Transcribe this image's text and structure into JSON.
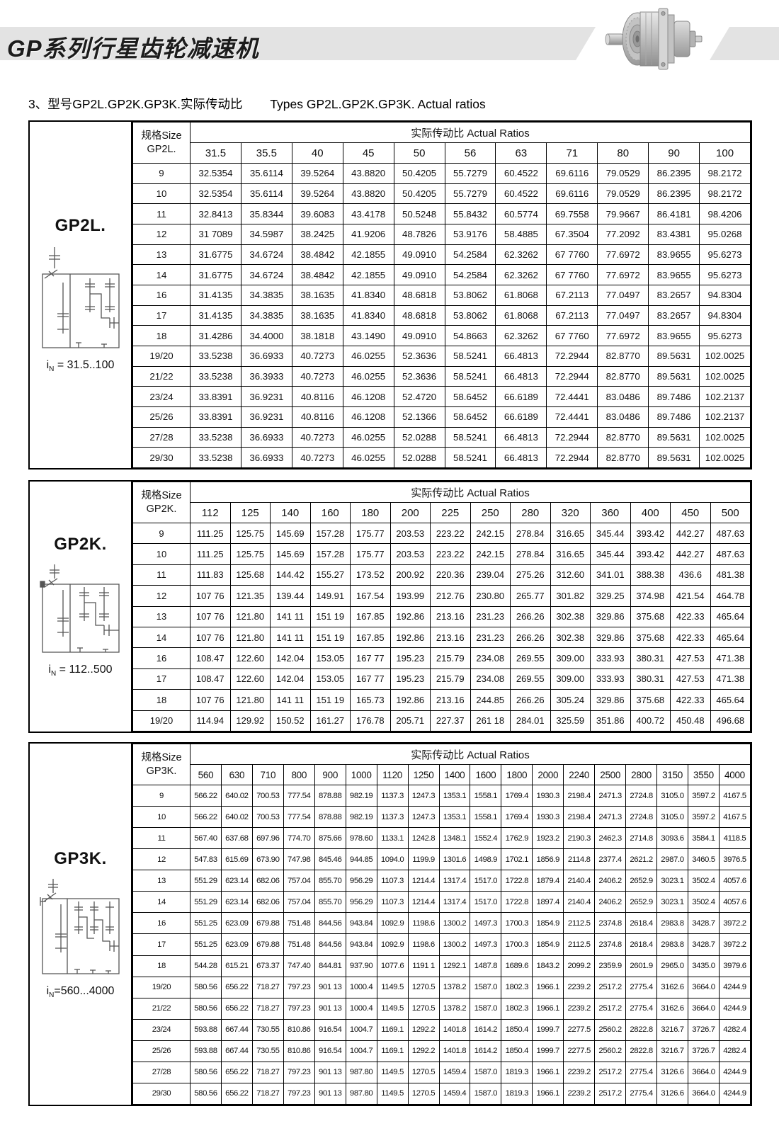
{
  "header": {
    "band_title": "GP系列行星齿轮减速机",
    "photo_alt": "planetary-gear-reducer-photo"
  },
  "section": {
    "title_zh": "3、型号GP2L.GP2K.GP3K.实际传动比",
    "title_en": "Types GP2L.GP2K.GP3K. Actual ratios"
  },
  "colors": {
    "band_gray": "#e3e3e3",
    "border_black": "#000000",
    "text": "#111111"
  },
  "tables": [
    {
      "model": "GP2L.",
      "size_header": "规格Size",
      "ratios_header": "实际传动比 Actual Ratios",
      "in_label": {
        "base": "i",
        "sub": "N",
        "range": " = 31.5..100"
      },
      "columns": [
        "31.5",
        "35.5",
        "40",
        "45",
        "50",
        "56",
        "63",
        "71",
        "80",
        "90",
        "100"
      ],
      "rows": [
        {
          "size": "9",
          "values": [
            "32.5354",
            "35.6114",
            "39.5264",
            "43.8820",
            "50.4205",
            "55.7279",
            "60.4522",
            "69.6116",
            "79.0529",
            "86.2395",
            "98.2172"
          ]
        },
        {
          "size": "10",
          "values": [
            "32.5354",
            "35.6114",
            "39.5264",
            "43.8820",
            "50.4205",
            "55.7279",
            "60.4522",
            "69.6116",
            "79.0529",
            "86.2395",
            "98.2172"
          ]
        },
        {
          "size": "11",
          "values": [
            "32.8413",
            "35.8344",
            "39.6083",
            "43.4178",
            "50.5248",
            "55.8432",
            "60.5774",
            "69.7558",
            "79.9667",
            "86.4181",
            "98.4206"
          ]
        },
        {
          "size": "12",
          "values": [
            "31 7089",
            "34.5987",
            "38.2425",
            "41.9206",
            "48.7826",
            "53.9176",
            "58.4885",
            "67.3504",
            "77.2092",
            "83.4381",
            "95.0268"
          ]
        },
        {
          "size": "13",
          "values": [
            "31.6775",
            "34.6724",
            "38.4842",
            "42.1855",
            "49.0910",
            "54.2584",
            "62.3262",
            "67 7760",
            "77.6972",
            "83.9655",
            "95.6273"
          ]
        },
        {
          "size": "14",
          "values": [
            "31.6775",
            "34.6724",
            "38.4842",
            "42.1855",
            "49.0910",
            "54.2584",
            "62.3262",
            "67 7760",
            "77.6972",
            "83.9655",
            "95.6273"
          ]
        },
        {
          "size": "16",
          "values": [
            "31.4135",
            "34.3835",
            "38.1635",
            "41.8340",
            "48.6818",
            "53.8062",
            "61.8068",
            "67.2113",
            "77.0497",
            "83.2657",
            "94.8304"
          ]
        },
        {
          "size": "17",
          "values": [
            "31.4135",
            "34.3835",
            "38.1635",
            "41.8340",
            "48.6818",
            "53.8062",
            "61.8068",
            "67.2113",
            "77.0497",
            "83.2657",
            "94.8304"
          ]
        },
        {
          "size": "18",
          "values": [
            "31.4286",
            "34.4000",
            "38.1818",
            "43.1490",
            "49.0910",
            "54.8663",
            "62.3262",
            "67 7760",
            "77.6972",
            "83.9655",
            "95.6273"
          ]
        },
        {
          "size": "19/20",
          "values": [
            "33.5238",
            "36.6933",
            "40.7273",
            "46.0255",
            "52.3636",
            "58.5241",
            "66.4813",
            "72.2944",
            "82.8770",
            "89.5631",
            "102.0025"
          ]
        },
        {
          "size": "21/22",
          "values": [
            "33.5238",
            "36.3933",
            "40.7273",
            "46.0255",
            "52.3636",
            "58.5241",
            "66.4813",
            "72.2944",
            "82.8770",
            "89.5631",
            "102.0025"
          ]
        },
        {
          "size": "23/24",
          "values": [
            "33.8391",
            "36.9231",
            "40.8116",
            "46.1208",
            "52.4720",
            "58.6452",
            "66.6189",
            "72.4441",
            "83.0486",
            "89.7486",
            "102.2137"
          ]
        },
        {
          "size": "25/26",
          "values": [
            "33.8391",
            "36.9231",
            "40.8116",
            "46.1208",
            "52.1366",
            "58.6452",
            "66.6189",
            "72.4441",
            "83.0486",
            "89.7486",
            "102.2137"
          ]
        },
        {
          "size": "27/28",
          "values": [
            "33.5238",
            "36.6933",
            "40.7273",
            "46.0255",
            "52.0288",
            "58.5241",
            "66.4813",
            "72.2944",
            "82.8770",
            "89.5631",
            "102.0025"
          ]
        },
        {
          "size": "29/30",
          "values": [
            "33.5238",
            "36.6933",
            "40.7273",
            "46.0255",
            "52.0288",
            "58.5241",
            "66.4813",
            "72.2944",
            "82.8770",
            "89.5631",
            "102.0025"
          ]
        }
      ]
    },
    {
      "model": "GP2K.",
      "size_header": "规格Size",
      "ratios_header": "实际传动比 Actual Ratios",
      "in_label": {
        "base": "i",
        "sub": "N",
        "range": " = 112..500"
      },
      "columns": [
        "112",
        "125",
        "140",
        "160",
        "180",
        "200",
        "225",
        "250",
        "280",
        "320",
        "360",
        "400",
        "450",
        "500"
      ],
      "rows": [
        {
          "size": "9",
          "values": [
            "111.25",
            "125.75",
            "145.69",
            "157.28",
            "175.77",
            "203.53",
            "223.22",
            "242.15",
            "278.84",
            "316.65",
            "345.44",
            "393.42",
            "442.27",
            "487.63"
          ]
        },
        {
          "size": "10",
          "values": [
            "111.25",
            "125.75",
            "145.69",
            "157.28",
            "175.77",
            "203.53",
            "223.22",
            "242.15",
            "278.84",
            "316.65",
            "345.44",
            "393.42",
            "442.27",
            "487.63"
          ]
        },
        {
          "size": "11",
          "values": [
            "111.83",
            "125.68",
            "144.42",
            "155.27",
            "173.52",
            "200.92",
            "220.36",
            "239.04",
            "275.26",
            "312.60",
            "341.01",
            "388.38",
            "436.6",
            "481.38"
          ]
        },
        {
          "size": "12",
          "values": [
            "107 76",
            "121.35",
            "139.44",
            "149.91",
            "167.54",
            "193.99",
            "212.76",
            "230.80",
            "265.77",
            "301.82",
            "329.25",
            "374.98",
            "421.54",
            "464.78"
          ]
        },
        {
          "size": "13",
          "values": [
            "107 76",
            "121.80",
            "141 11",
            "151 19",
            "167.85",
            "192.86",
            "213.16",
            "231.23",
            "266.26",
            "302.38",
            "329.86",
            "375.68",
            "422.33",
            "465.64"
          ]
        },
        {
          "size": "14",
          "values": [
            "107 76",
            "121.80",
            "141 11",
            "151 19",
            "167.85",
            "192.86",
            "213.16",
            "231.23",
            "266.26",
            "302.38",
            "329.86",
            "375.68",
            "422.33",
            "465.64"
          ]
        },
        {
          "size": "16",
          "values": [
            "108.47",
            "122.60",
            "142.04",
            "153.05",
            "167 77",
            "195.23",
            "215.79",
            "234.08",
            "269.55",
            "309.00",
            "333.93",
            "380.31",
            "427.53",
            "471.38"
          ]
        },
        {
          "size": "17",
          "values": [
            "108.47",
            "122.60",
            "142.04",
            "153.05",
            "167 77",
            "195.23",
            "215.79",
            "234.08",
            "269.55",
            "309.00",
            "333.93",
            "380.31",
            "427.53",
            "471.38"
          ]
        },
        {
          "size": "18",
          "values": [
            "107 76",
            "121.80",
            "141 11",
            "151 19",
            "165.73",
            "192.86",
            "213.16",
            "244.85",
            "266.26",
            "305.24",
            "329.86",
            "375.68",
            "422.33",
            "465.64"
          ]
        },
        {
          "size": "19/20",
          "values": [
            "114.94",
            "129.92",
            "150.52",
            "161.27",
            "176.78",
            "205.71",
            "227.37",
            "261 18",
            "284.01",
            "325.59",
            "351.86",
            "400.72",
            "450.48",
            "496.68"
          ]
        }
      ]
    },
    {
      "model": "GP3K.",
      "size_header": "规格Size",
      "ratios_header": "实际传动比 Actual Ratios",
      "in_label": {
        "base": "i",
        "sub": "N",
        "range": "=560...4000"
      },
      "columns": [
        "560",
        "630",
        "710",
        "800",
        "900",
        "1000",
        "1120",
        "1250",
        "1400",
        "1600",
        "1800",
        "2000",
        "2240",
        "2500",
        "2800",
        "3150",
        "3550",
        "4000"
      ],
      "rows": [
        {
          "size": "9",
          "values": [
            "566.22",
            "640.02",
            "700.53",
            "777.54",
            "878.88",
            "982.19",
            "1137.3",
            "1247.3",
            "1353.1",
            "1558.1",
            "1769.4",
            "1930.3",
            "2198.4",
            "2471.3",
            "2724.8",
            "3105.0",
            "3597.2",
            "4167.5"
          ]
        },
        {
          "size": "10",
          "values": [
            "566.22",
            "640.02",
            "700.53",
            "777.54",
            "878.88",
            "982.19",
            "1137.3",
            "1247.3",
            "1353.1",
            "1558.1",
            "1769.4",
            "1930.3",
            "2198.4",
            "2471.3",
            "2724.8",
            "3105.0",
            "3597.2",
            "4167.5"
          ]
        },
        {
          "size": "11",
          "values": [
            "567.40",
            "637.68",
            "697.96",
            "774.70",
            "875.66",
            "978.60",
            "1133.1",
            "1242.8",
            "1348.1",
            "1552.4",
            "1762.9",
            "1923.2",
            "2190.3",
            "2462.3",
            "2714.8",
            "3093.6",
            "3584.1",
            "4118.5"
          ]
        },
        {
          "size": "12",
          "values": [
            "547.83",
            "615.69",
            "673.90",
            "747.98",
            "845.46",
            "944.85",
            "1094.0",
            "1199.9",
            "1301.6",
            "1498.9",
            "1702.1",
            "1856.9",
            "2114.8",
            "2377.4",
            "2621.2",
            "2987.0",
            "3460.5",
            "3976.5"
          ]
        },
        {
          "size": "13",
          "values": [
            "551.29",
            "623.14",
            "682.06",
            "757.04",
            "855.70",
            "956.29",
            "1107.3",
            "1214.4",
            "1317.4",
            "1517.0",
            "1722.8",
            "1879.4",
            "2140.4",
            "2406.2",
            "2652.9",
            "3023.1",
            "3502.4",
            "4057.6"
          ]
        },
        {
          "size": "14",
          "values": [
            "551.29",
            "623.14",
            "682.06",
            "757.04",
            "855.70",
            "956.29",
            "1107.3",
            "1214.4",
            "1317.4",
            "1517.0",
            "1722.8",
            "1897.4",
            "2140.4",
            "2406.2",
            "2652.9",
            "3023.1",
            "3502.4",
            "4057.6"
          ]
        },
        {
          "size": "16",
          "values": [
            "551.25",
            "623.09",
            "679.88",
            "751.48",
            "844.56",
            "943.84",
            "1092.9",
            "1198.6",
            "1300.2",
            "1497.3",
            "1700.3",
            "1854.9",
            "2112.5",
            "2374.8",
            "2618.4",
            "2983.8",
            "3428.7",
            "3972.2"
          ]
        },
        {
          "size": "17",
          "values": [
            "551.25",
            "623.09",
            "679.88",
            "751.48",
            "844.56",
            "943.84",
            "1092.9",
            "1198.6",
            "1300.2",
            "1497.3",
            "1700.3",
            "1854.9",
            "2112.5",
            "2374.8",
            "2618.4",
            "2983.8",
            "3428.7",
            "3972.2"
          ]
        },
        {
          "size": "18",
          "values": [
            "544.28",
            "615.21",
            "673.37",
            "747.40",
            "844.81",
            "937.90",
            "1077.6",
            "1191 1",
            "1292.1",
            "1487.8",
            "1689.6",
            "1843.2",
            "2099.2",
            "2359.9",
            "2601.9",
            "2965.0",
            "3435.0",
            "3979.6"
          ]
        },
        {
          "size": "19/20",
          "values": [
            "580.56",
            "656.22",
            "718.27",
            "797.23",
            "901 13",
            "1000.4",
            "1149.5",
            "1270.5",
            "1378.2",
            "1587.0",
            "1802.3",
            "1966.1",
            "2239.2",
            "2517.2",
            "2775.4",
            "3162.6",
            "3664.0",
            "4244.9"
          ]
        },
        {
          "size": "21/22",
          "values": [
            "580.56",
            "656.22",
            "718.27",
            "797.23",
            "901 13",
            "1000.4",
            "1149.5",
            "1270.5",
            "1378.2",
            "1587.0",
            "1802.3",
            "1966.1",
            "2239.2",
            "2517.2",
            "2775.4",
            "3162.6",
            "3664.0",
            "4244.9"
          ]
        },
        {
          "size": "23/24",
          "values": [
            "593.88",
            "667.44",
            "730.55",
            "810.86",
            "916.54",
            "1004.7",
            "1169.1",
            "1292.2",
            "1401.8",
            "1614.2",
            "1850.4",
            "1999.7",
            "2277.5",
            "2560.2",
            "2822.8",
            "3216.7",
            "3726.7",
            "4282.4"
          ]
        },
        {
          "size": "25/26",
          "values": [
            "593.88",
            "667.44",
            "730.55",
            "810.86",
            "916.54",
            "1004.7",
            "1169.1",
            "1292.2",
            "1401.8",
            "1614.2",
            "1850.4",
            "1999.7",
            "2277.5",
            "2560.2",
            "2822.8",
            "3216.7",
            "3726.7",
            "4282.4"
          ]
        },
        {
          "size": "27/28",
          "values": [
            "580.56",
            "656.22",
            "718.27",
            "797.23",
            "901 13",
            "987.80",
            "1149.5",
            "1270.5",
            "1459.4",
            "1587.0",
            "1819.3",
            "1966.1",
            "2239.2",
            "2517.2",
            "2775.4",
            "3126.6",
            "3664.0",
            "4244.9"
          ]
        },
        {
          "size": "29/30",
          "values": [
            "580.56",
            "656.22",
            "718.27",
            "797.23",
            "901 13",
            "987.80",
            "1149.5",
            "1270.5",
            "1459.4",
            "1587.0",
            "1819.3",
            "1966.1",
            "2239.2",
            "2517.2",
            "2775.4",
            "3126.6",
            "3664.0",
            "4244.9"
          ]
        }
      ]
    }
  ]
}
